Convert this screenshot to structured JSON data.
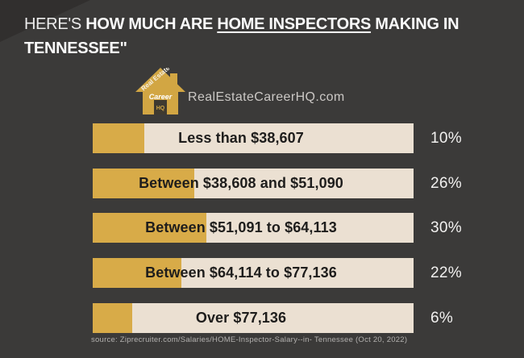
{
  "title": {
    "prefix": "HERE'S ",
    "bold_mid": "HOW MUCH ARE ",
    "underlined": "HOME INSPECTORS",
    "suffix": " MAKING IN TENNESSEE\""
  },
  "brand": {
    "site": "RealEstateCareerHQ.com",
    "logo_text_diagonal": "Real Estate",
    "logo_text_mid": "Career",
    "logo_text_door": "HQ"
  },
  "chart_data": {
    "type": "bar",
    "orientation": "horizontal",
    "title": "HERE'S HOW MUCH ARE HOME INSPECTORS MAKING IN TENNESSEE\"",
    "categories": [
      "Less than $38,607",
      "Between $38,608 and $51,090",
      "Between $51,091 to $64,113",
      "Between $64,114 to $77,136",
      "Over $77,136"
    ],
    "values": [
      10,
      26,
      30,
      22,
      6
    ],
    "unit": "%",
    "value_labels": [
      "10%",
      "26%",
      "30%",
      "22%",
      "6%"
    ],
    "legend": "none",
    "grid": false
  },
  "source": "source: Ziprecruiter.com/Salaries/HOME-Inspector-Salary--in- Tennessee (Oct 20, 2022)",
  "colors": {
    "background": "#3b3a39",
    "bar_fill": "#d8ab48",
    "bar_track": "#ebe0d2",
    "label_dark": "#1e1d1c",
    "text_light": "#f2f1f0"
  }
}
